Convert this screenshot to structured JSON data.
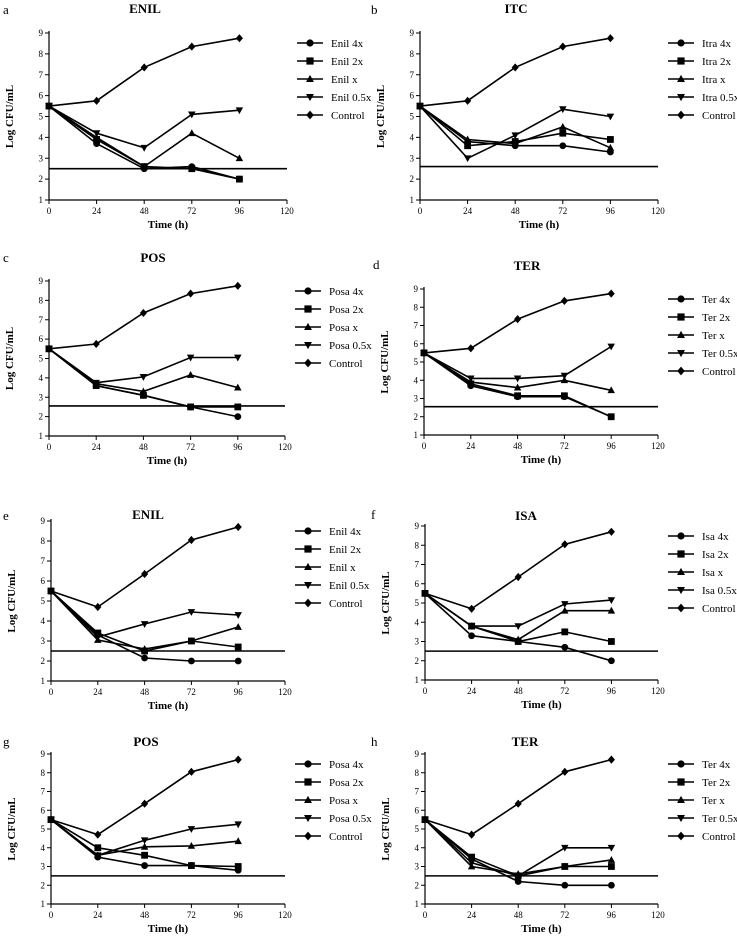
{
  "chart_data": [
    {
      "panel": "a",
      "title": "ENIL",
      "type": "line",
      "xlabel": "Time (h)",
      "ylabel": "Log CFU/mL",
      "x": [
        0,
        24,
        48,
        72,
        96
      ],
      "xticks": [
        0,
        24,
        48,
        72,
        96,
        120
      ],
      "yticks": [
        1,
        2,
        3,
        4,
        5,
        6,
        7,
        8,
        9
      ],
      "xlim": [
        0,
        120
      ],
      "ylim": [
        1,
        9
      ],
      "threshold": 2.5,
      "series": [
        {
          "name": "Enil 4x",
          "marker": "circle",
          "values": [
            5.5,
            3.7,
            2.5,
            2.6,
            2.0
          ]
        },
        {
          "name": "Enil 2x",
          "marker": "square",
          "values": [
            5.5,
            3.9,
            2.6,
            2.5,
            2.0
          ]
        },
        {
          "name": "Enil x",
          "marker": "triangle-up",
          "values": [
            5.5,
            4.0,
            2.6,
            4.2,
            3.0
          ]
        },
        {
          "name": "Enil 0.5x",
          "marker": "triangle-down",
          "values": [
            5.5,
            4.2,
            3.5,
            5.1,
            5.3
          ]
        },
        {
          "name": "Control",
          "marker": "diamond",
          "values": [
            5.5,
            5.75,
            7.35,
            8.35,
            8.75
          ]
        }
      ]
    },
    {
      "panel": "b",
      "title": "ITC",
      "type": "line",
      "xlabel": "Time (h)",
      "ylabel": "Log CFU/mL",
      "x": [
        0,
        24,
        48,
        72,
        96
      ],
      "xticks": [
        0,
        24,
        48,
        72,
        96,
        120
      ],
      "yticks": [
        1,
        2,
        3,
        4,
        5,
        6,
        7,
        8,
        9
      ],
      "xlim": [
        0,
        120
      ],
      "ylim": [
        1,
        9
      ],
      "threshold": 2.6,
      "series": [
        {
          "name": "Itra 4x",
          "marker": "circle",
          "values": [
            5.5,
            3.8,
            3.6,
            3.6,
            3.3
          ]
        },
        {
          "name": "Itra 2x",
          "marker": "square",
          "values": [
            5.5,
            3.6,
            3.8,
            4.2,
            3.9
          ]
        },
        {
          "name": "Itra x",
          "marker": "triangle-up",
          "values": [
            5.5,
            3.9,
            3.7,
            4.5,
            3.5
          ]
        },
        {
          "name": "Itra 0.5x",
          "marker": "triangle-down",
          "values": [
            5.5,
            3.0,
            4.1,
            5.35,
            5.0
          ]
        },
        {
          "name": "Control",
          "marker": "diamond",
          "values": [
            5.5,
            5.75,
            7.35,
            8.35,
            8.75
          ]
        }
      ]
    },
    {
      "panel": "c",
      "title": "POS",
      "type": "line",
      "xlabel": "Time (h)",
      "ylabel": "Log CFU/mL",
      "x": [
        0,
        24,
        48,
        72,
        96
      ],
      "xticks": [
        0,
        24,
        48,
        72,
        96,
        120
      ],
      "yticks": [
        1,
        2,
        3,
        4,
        5,
        6,
        7,
        8,
        9
      ],
      "xlim": [
        0,
        120
      ],
      "ylim": [
        1,
        9
      ],
      "threshold": 2.55,
      "series": [
        {
          "name": "Posa 4x",
          "marker": "circle",
          "values": [
            5.5,
            3.6,
            3.1,
            2.5,
            2.0
          ]
        },
        {
          "name": "Posa 2x",
          "marker": "square",
          "values": [
            5.5,
            3.6,
            3.1,
            2.5,
            2.5
          ]
        },
        {
          "name": "Posa x",
          "marker": "triangle-up",
          "values": [
            5.5,
            3.7,
            3.3,
            4.15,
            3.5
          ]
        },
        {
          "name": "Posa 0.5x",
          "marker": "triangle-down",
          "values": [
            5.5,
            3.75,
            4.05,
            5.05,
            5.05
          ]
        },
        {
          "name": "Control",
          "marker": "diamond",
          "values": [
            5.5,
            5.75,
            7.35,
            8.35,
            8.75
          ]
        }
      ]
    },
    {
      "panel": "d",
      "title": "TER",
      "type": "line",
      "xlabel": "Time (h)",
      "ylabel": "Log CFU/mL",
      "x": [
        0,
        24,
        48,
        72,
        96
      ],
      "xticks": [
        0,
        24,
        48,
        72,
        96,
        120
      ],
      "yticks": [
        1,
        2,
        3,
        4,
        5,
        6,
        7,
        8,
        9
      ],
      "xlim": [
        0,
        120
      ],
      "ylim": [
        1,
        9
      ],
      "threshold": 2.55,
      "series": [
        {
          "name": "Ter 4x",
          "marker": "circle",
          "values": [
            5.5,
            3.7,
            3.1,
            3.1,
            2.0
          ]
        },
        {
          "name": "Ter 2x",
          "marker": "square",
          "values": [
            5.5,
            3.8,
            3.15,
            3.15,
            2.0
          ]
        },
        {
          "name": "Ter x",
          "marker": "triangle-up",
          "values": [
            5.5,
            3.9,
            3.6,
            4.0,
            3.45
          ]
        },
        {
          "name": "Ter 0.5x",
          "marker": "triangle-down",
          "values": [
            5.5,
            4.1,
            4.1,
            4.25,
            5.85
          ]
        },
        {
          "name": "Control",
          "marker": "diamond",
          "values": [
            5.5,
            5.75,
            7.35,
            8.35,
            8.75
          ]
        }
      ]
    },
    {
      "panel": "e",
      "title": "ENIL",
      "type": "line",
      "xlabel": "Time (h)",
      "ylabel": "Log CFU/mL",
      "x": [
        0,
        24,
        48,
        72,
        96
      ],
      "xticks": [
        0,
        24,
        48,
        72,
        96,
        120
      ],
      "yticks": [
        1,
        2,
        3,
        4,
        5,
        6,
        7,
        8,
        9
      ],
      "xlim": [
        0,
        120
      ],
      "ylim": [
        1,
        9
      ],
      "threshold": 2.5,
      "series": [
        {
          "name": "Enil 4x",
          "marker": "circle",
          "values": [
            5.5,
            3.3,
            2.15,
            2.0,
            2.0
          ]
        },
        {
          "name": "Enil 2x",
          "marker": "square",
          "values": [
            5.5,
            3.4,
            2.5,
            3.0,
            2.7
          ]
        },
        {
          "name": "Enil x",
          "marker": "triangle-up",
          "values": [
            5.5,
            3.05,
            2.6,
            3.0,
            3.7
          ]
        },
        {
          "name": "Enil 0.5x",
          "marker": "triangle-down",
          "values": [
            5.5,
            3.2,
            3.85,
            4.45,
            4.3
          ]
        },
        {
          "name": "Control",
          "marker": "diamond",
          "values": [
            5.5,
            4.7,
            6.35,
            8.05,
            8.7
          ]
        }
      ]
    },
    {
      "panel": "f",
      "title": "ISA",
      "type": "line",
      "xlabel": "Time (h)",
      "ylabel": "Log CFU/mL",
      "x": [
        0,
        24,
        48,
        72,
        96
      ],
      "xticks": [
        0,
        24,
        48,
        72,
        96,
        120
      ],
      "yticks": [
        1,
        2,
        3,
        4,
        5,
        6,
        7,
        8,
        9
      ],
      "xlim": [
        0,
        120
      ],
      "ylim": [
        1,
        9
      ],
      "threshold": 2.5,
      "series": [
        {
          "name": "Isa 4x",
          "marker": "circle",
          "values": [
            5.5,
            3.3,
            3.0,
            2.7,
            2.0
          ]
        },
        {
          "name": "Isa 2x",
          "marker": "square",
          "values": [
            5.5,
            3.8,
            3.0,
            3.5,
            3.0
          ]
        },
        {
          "name": "Isa x",
          "marker": "triangle-up",
          "values": [
            5.5,
            3.8,
            3.1,
            4.6,
            4.6
          ]
        },
        {
          "name": "Isa 0.5x",
          "marker": "triangle-down",
          "values": [
            5.5,
            3.8,
            3.8,
            4.95,
            5.15
          ]
        },
        {
          "name": "Control",
          "marker": "diamond",
          "values": [
            5.5,
            4.7,
            6.35,
            8.05,
            8.7
          ]
        }
      ]
    },
    {
      "panel": "g",
      "title": "POS",
      "type": "line",
      "xlabel": "Time (h)",
      "ylabel": "Log CFU/mL",
      "x": [
        0,
        24,
        48,
        72,
        96
      ],
      "xticks": [
        0,
        24,
        48,
        72,
        96,
        120
      ],
      "yticks": [
        1,
        2,
        3,
        4,
        5,
        6,
        7,
        8,
        9
      ],
      "xlim": [
        0,
        120
      ],
      "ylim": [
        1,
        9
      ],
      "threshold": 2.5,
      "series": [
        {
          "name": "Posa 4x",
          "marker": "circle",
          "values": [
            5.5,
            3.5,
            3.05,
            3.05,
            2.8
          ]
        },
        {
          "name": "Posa 2x",
          "marker": "square",
          "values": [
            5.5,
            4.0,
            3.6,
            3.05,
            3.0
          ]
        },
        {
          "name": "Posa x",
          "marker": "triangle-up",
          "values": [
            5.5,
            3.6,
            4.05,
            4.1,
            4.35
          ]
        },
        {
          "name": "Posa 0.5x",
          "marker": "triangle-down",
          "values": [
            5.5,
            3.6,
            4.4,
            5.0,
            5.25
          ]
        },
        {
          "name": "Control",
          "marker": "diamond",
          "values": [
            5.5,
            4.7,
            6.35,
            8.05,
            8.7
          ]
        }
      ]
    },
    {
      "panel": "h",
      "title": "TER",
      "type": "line",
      "xlabel": "Time (h)",
      "ylabel": "Log CFU/mL",
      "x": [
        0,
        24,
        48,
        72,
        96
      ],
      "xticks": [
        0,
        24,
        48,
        72,
        96,
        120
      ],
      "yticks": [
        1,
        2,
        3,
        4,
        5,
        6,
        7,
        8,
        9
      ],
      "xlim": [
        0,
        120
      ],
      "ylim": [
        1,
        9
      ],
      "threshold": 2.5,
      "series": [
        {
          "name": "Ter 4x",
          "marker": "circle",
          "values": [
            5.5,
            3.4,
            2.2,
            2.0,
            2.0
          ]
        },
        {
          "name": "Ter 2x",
          "marker": "square",
          "values": [
            5.5,
            3.5,
            2.5,
            3.0,
            3.0
          ]
        },
        {
          "name": "Ter x",
          "marker": "triangle-up",
          "values": [
            5.5,
            3.0,
            2.6,
            3.0,
            3.35
          ]
        },
        {
          "name": "Ter 0.5x",
          "marker": "triangle-down",
          "values": [
            5.5,
            3.2,
            2.5,
            4.0,
            4.0
          ]
        },
        {
          "name": "Control",
          "marker": "diamond",
          "values": [
            5.5,
            4.7,
            6.35,
            8.05,
            8.7
          ]
        }
      ]
    }
  ]
}
